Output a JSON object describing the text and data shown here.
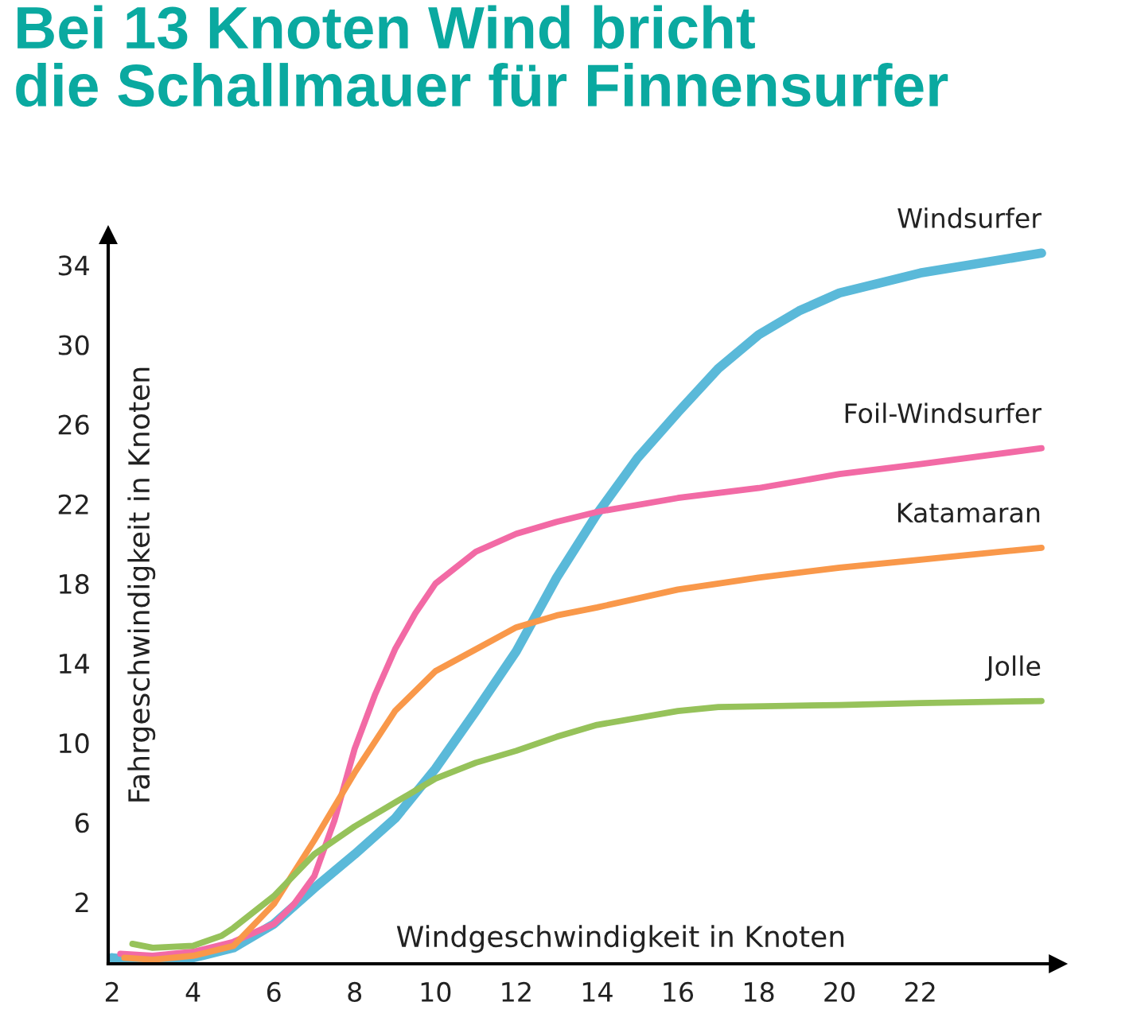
{
  "chart_data": {
    "type": "line",
    "title": "Bei 13 Knoten Wind bricht\ndie Schallmauer für Finnensurfer",
    "xlabel": "Windgeschwindigkeit in Knoten",
    "ylabel": "Fahrgeschwindigkeit in Knoten",
    "xlim": [
      1.9,
      25.4
    ],
    "ylim": [
      -1.1,
      35.5
    ],
    "xticks": [
      2,
      4,
      6,
      8,
      10,
      12,
      14,
      16,
      18,
      20,
      22
    ],
    "yticks": [
      2,
      6,
      10,
      14,
      18,
      22,
      26,
      30,
      34
    ],
    "grid": false,
    "marker": "none",
    "line_style": "solid",
    "series": [
      {
        "name": "Windsurfer",
        "color": "#5ab9d9",
        "x": [
          2,
          3,
          4,
          5,
          6,
          7,
          8,
          9,
          10,
          11,
          12,
          13,
          14,
          15,
          16,
          17,
          18,
          19,
          20,
          22,
          25
        ],
        "values": [
          -0.8,
          -1,
          -0.8,
          -0.3,
          0.9,
          2.7,
          4.4,
          6.2,
          8.7,
          11.6,
          14.6,
          18.3,
          21.5,
          24.3,
          26.6,
          28.8,
          30.5,
          31.7,
          32.6,
          33.6,
          34.6
        ]
      },
      {
        "name": "Foil-Windsurfer",
        "color": "#f26aa5",
        "x": [
          2.2,
          3,
          4,
          5,
          6,
          6.5,
          7,
          7.5,
          8,
          8.5,
          9,
          9.5,
          10,
          11,
          12,
          13,
          14,
          16,
          18,
          20,
          22,
          25
        ],
        "values": [
          -0.6,
          -0.7,
          -0.5,
          0,
          0.9,
          1.9,
          3.3,
          6.1,
          9.7,
          12.4,
          14.7,
          16.5,
          18,
          19.6,
          20.5,
          21.1,
          21.6,
          22.3,
          22.8,
          23.5,
          24,
          24.8
        ]
      },
      {
        "name": "Katamaran",
        "color": "#f9984a",
        "x": [
          2.3,
          3,
          4,
          5,
          6,
          7,
          8,
          9,
          10,
          11,
          12,
          13,
          14,
          16,
          18,
          20,
          22,
          25
        ],
        "values": [
          -0.8,
          -0.9,
          -0.7,
          -0.2,
          1.9,
          5.1,
          8.5,
          11.6,
          13.6,
          14.7,
          15.8,
          16.4,
          16.8,
          17.7,
          18.3,
          18.8,
          19.2,
          19.8
        ]
      },
      {
        "name": "Jolle",
        "color": "#96c25a",
        "x": [
          2.5,
          3,
          4,
          4.7,
          5,
          6,
          7,
          8,
          9,
          10,
          11,
          12,
          13,
          14,
          16,
          17,
          20,
          22,
          25
        ],
        "values": [
          -0.1,
          -0.3,
          -0.2,
          0.3,
          0.7,
          2.3,
          4.4,
          5.8,
          7,
          8.2,
          9,
          9.6,
          10.3,
          10.9,
          11.6,
          11.8,
          11.9,
          12,
          12.1
        ]
      }
    ]
  }
}
